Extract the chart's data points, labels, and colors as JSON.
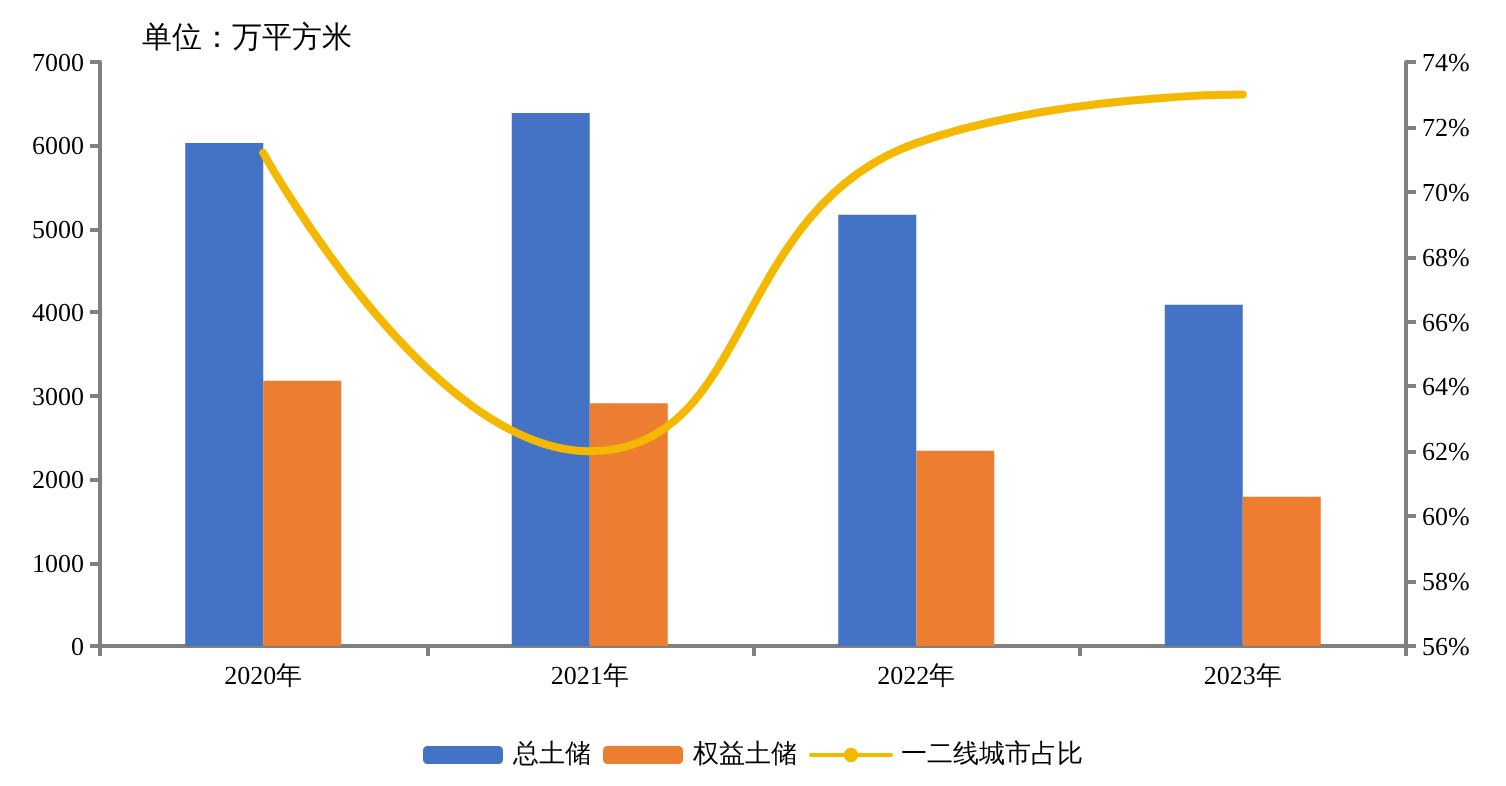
{
  "chart_data": {
    "type": "bar",
    "title": "单位：万平方米",
    "categories": [
      "2020年",
      "2021年",
      "2022年",
      "2023年"
    ],
    "series": [
      {
        "name": "总土储",
        "color": "#4472c4",
        "values": [
          6030,
          6390,
          5170,
          4090
        ]
      },
      {
        "name": "权益土储",
        "color": "#ed7d31",
        "values": [
          3180,
          2910,
          2340,
          1790
        ]
      },
      {
        "name": "一二线城市占比",
        "type": "line",
        "axis": "y2",
        "color": "#f5b800",
        "values": [
          71.2,
          62.0,
          71.5,
          73.0
        ],
        "marker": "none"
      }
    ],
    "ylim": [
      0,
      7000
    ],
    "yticks": [
      0,
      1000,
      2000,
      3000,
      4000,
      5000,
      6000,
      7000
    ],
    "y2lim": [
      56,
      74
    ],
    "y2ticks": [
      {
        "value": 56,
        "label": "56%"
      },
      {
        "value": 58,
        "label": "58%"
      },
      {
        "value": 60,
        "label": "60%"
      },
      {
        "value": 62,
        "label": "62%"
      },
      {
        "value": 64,
        "label": "64%"
      },
      {
        "value": 66,
        "label": "66%"
      },
      {
        "value": 68,
        "label": "68%"
      },
      {
        "value": 70,
        "label": "70%"
      },
      {
        "value": 72,
        "label": "72%"
      },
      {
        "value": 74,
        "label": "74%"
      }
    ],
    "grid": false,
    "legend": "bottom"
  }
}
